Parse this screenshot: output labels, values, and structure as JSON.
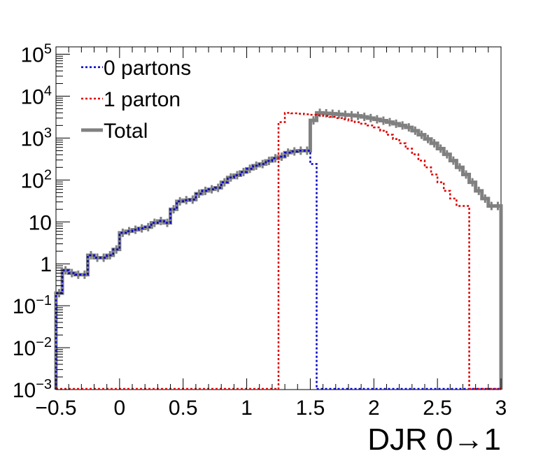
{
  "chart_data": {
    "type": "line",
    "title": "",
    "xlabel": "DJR 0→1",
    "ylabel": "",
    "xlim": [
      -0.5,
      3.0
    ],
    "ylim": [
      0.001,
      150000
    ],
    "y_scale": "log",
    "grid": false,
    "legend_position": "top-left",
    "x_ticks": [
      {
        "value": -0.5,
        "label": "−0.5"
      },
      {
        "value": 0,
        "label": "0"
      },
      {
        "value": 0.5,
        "label": "0.5"
      },
      {
        "value": 1,
        "label": "1"
      },
      {
        "value": 1.5,
        "label": "1.5"
      },
      {
        "value": 2,
        "label": "2"
      },
      {
        "value": 2.5,
        "label": "2.5"
      },
      {
        "value": 3,
        "label": "3"
      }
    ],
    "y_ticks": [
      {
        "value": 0.001,
        "base": "10",
        "exp": "−3"
      },
      {
        "value": 0.01,
        "base": "10",
        "exp": "−2"
      },
      {
        "value": 0.1,
        "base": "10",
        "exp": "−1"
      },
      {
        "value": 1,
        "base": "1",
        "exp": ""
      },
      {
        "value": 10,
        "base": "10",
        "exp": ""
      },
      {
        "value": 100,
        "base": "10",
        "exp": "2"
      },
      {
        "value": 1000,
        "base": "10",
        "exp": "3"
      },
      {
        "value": 10000,
        "base": "10",
        "exp": "4"
      },
      {
        "value": 100000,
        "base": "10",
        "exp": "5"
      }
    ],
    "bin_width": 0.05,
    "series": [
      {
        "name": "0 partons",
        "color": "#0000cc",
        "style": "dotted",
        "bin_start": -0.5,
        "values": [
          0.2,
          0.7,
          0.6,
          0.55,
          0.55,
          1.6,
          1.4,
          1.4,
          1.6,
          2.2,
          5.5,
          6.0,
          6.5,
          7.0,
          7.5,
          9.5,
          10.5,
          9.5,
          20,
          31,
          33,
          34,
          47,
          55,
          60,
          65,
          88,
          115,
          130,
          155,
          185,
          220,
          240,
          285,
          330,
          360,
          450,
          480,
          500,
          500,
          240
        ]
      },
      {
        "name": "1 parton",
        "color": "#dd0000",
        "style": "dotted",
        "bin_start": 1.25,
        "values": [
          2400,
          4000,
          3900,
          3800,
          3700,
          3600,
          3500,
          3400,
          3200,
          3000,
          2800,
          2600,
          2400,
          2200,
          2000,
          1800,
          1500,
          1200,
          950,
          750,
          560,
          410,
          290,
          200,
          135,
          88,
          55,
          36,
          24,
          24
        ]
      },
      {
        "name": "Total",
        "color": "#808080",
        "style": "solid",
        "bin_start": -0.5,
        "values": [
          0.2,
          0.7,
          0.6,
          0.55,
          0.55,
          1.6,
          1.4,
          1.4,
          1.6,
          2.2,
          5.5,
          6.0,
          6.5,
          7.0,
          7.5,
          9.5,
          10.5,
          9.5,
          20,
          31,
          33,
          34,
          47,
          55,
          60,
          65,
          88,
          115,
          130,
          155,
          185,
          220,
          240,
          285,
          330,
          360,
          450,
          480,
          500,
          500,
          2640,
          4000,
          3900,
          3800,
          3700,
          3600,
          3500,
          3400,
          3200,
          3000,
          2800,
          2600,
          2400,
          2200,
          2000,
          1800,
          1500,
          1200,
          950,
          750,
          560,
          410,
          290,
          200,
          135,
          88,
          55,
          36,
          24,
          24
        ]
      }
    ],
    "legend": [
      {
        "label": "0 partons",
        "color": "#0000cc",
        "style": "dotted"
      },
      {
        "label": "1 parton",
        "color": "#dd0000",
        "style": "dotted"
      },
      {
        "label": "Total",
        "color": "#808080",
        "style": "solid"
      }
    ]
  }
}
